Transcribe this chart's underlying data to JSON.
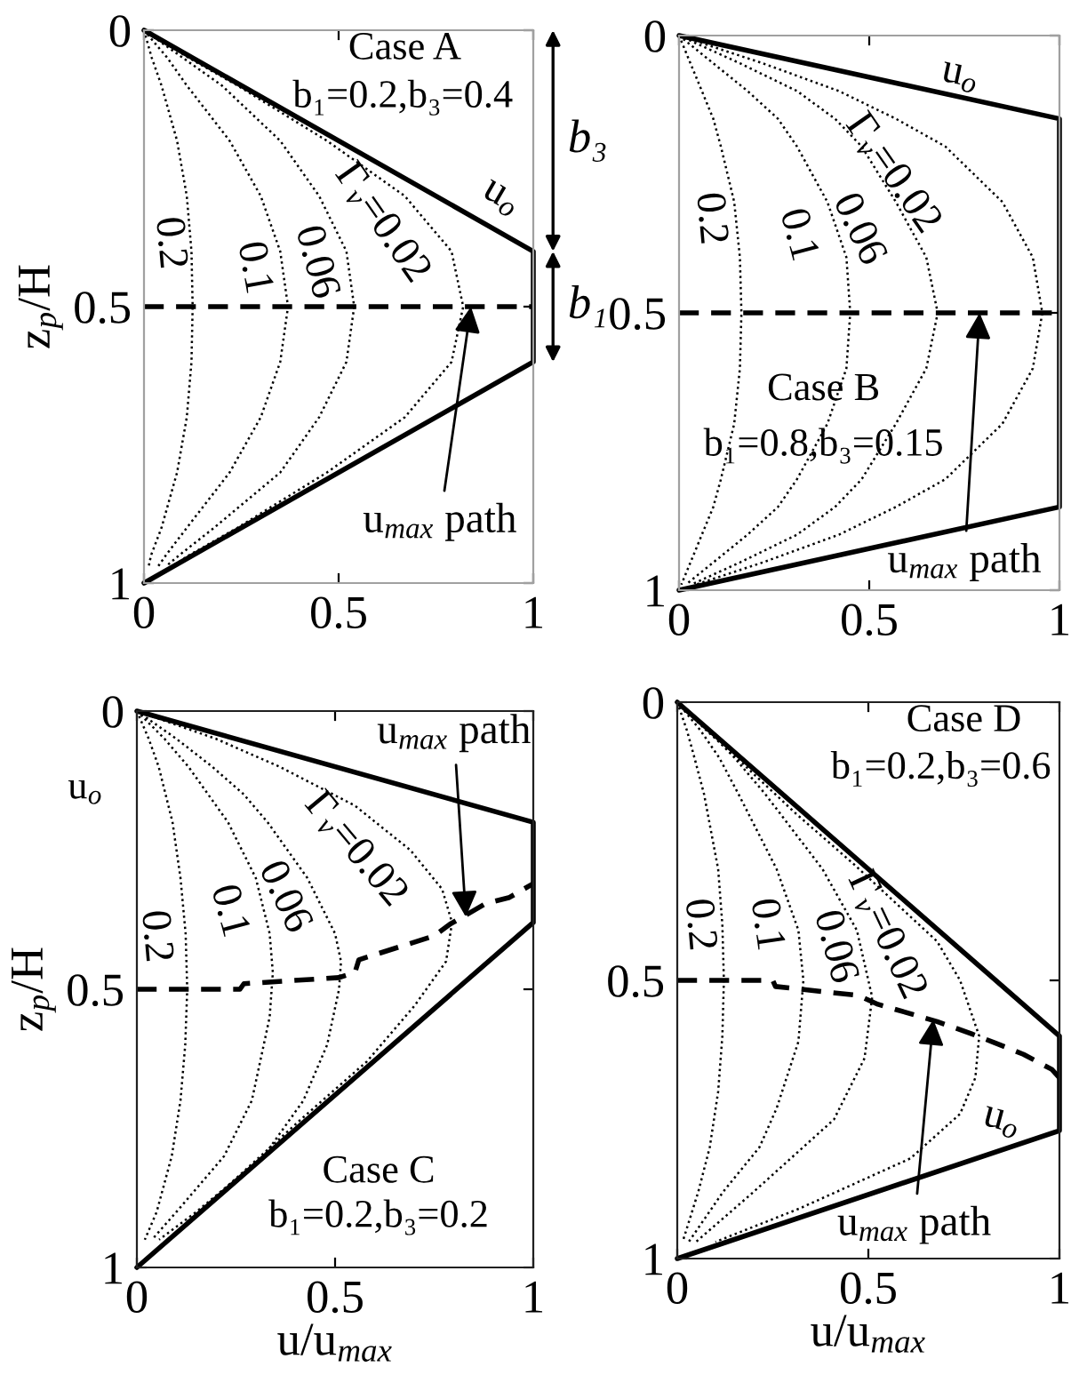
{
  "chart_data": [
    {
      "type": "line",
      "ylabel": "z$_{p}$/H",
      "xlim": [
        0,
        1
      ],
      "ylim": [
        1,
        0
      ],
      "xticks": [
        0,
        0.5,
        1
      ],
      "yticks": [
        0,
        0.5,
        1
      ],
      "series": [
        {
          "name": "u$_{o}$",
          "color": "#000000",
          "line_style": "solid",
          "x": [
            0,
            1,
            1,
            0
          ],
          "values": [
            0,
            0.4,
            0.6,
            1
          ]
        },
        {
          "name": "Γ$_{v}$=0.02",
          "color": "#000000",
          "line_style": "dotted",
          "x": [
            0,
            0.115,
            0.24,
            0.47,
            0.67,
            0.79,
            0.82,
            0.79,
            0.67,
            0.47,
            0.24,
            0.115,
            0.072
          ],
          "values": [
            0,
            0.05,
            0.1,
            0.2,
            0.3,
            0.4,
            0.5,
            0.6,
            0.7,
            0.8,
            0.9,
            0.95,
            0.97
          ]
        },
        {
          "name": "0.06",
          "color": "#000000",
          "line_style": "dotted",
          "x": [
            0,
            0.1,
            0.2,
            0.35,
            0.45,
            0.52,
            0.54,
            0.52,
            0.45,
            0.35,
            0.18,
            0.09,
            0.056
          ],
          "values": [
            0,
            0.05,
            0.1,
            0.2,
            0.3,
            0.4,
            0.5,
            0.6,
            0.7,
            0.8,
            0.9,
            0.95,
            0.97
          ]
        },
        {
          "name": "0.1",
          "color": "#000000",
          "line_style": "dotted",
          "x": [
            0,
            0.06,
            0.11,
            0.22,
            0.3,
            0.35,
            0.37,
            0.35,
            0.3,
            0.22,
            0.11,
            0.056,
            0.036
          ],
          "values": [
            0,
            0.05,
            0.1,
            0.2,
            0.3,
            0.4,
            0.5,
            0.6,
            0.7,
            0.8,
            0.9,
            0.95,
            0.97
          ]
        },
        {
          "name": "0.2",
          "color": "#000000",
          "line_style": "dotted",
          "x": [
            0,
            0.02,
            0.045,
            0.085,
            0.11,
            0.122,
            0.125,
            0.122,
            0.11,
            0.085,
            0.045,
            0.018,
            0.012
          ],
          "values": [
            0,
            0.05,
            0.1,
            0.2,
            0.3,
            0.4,
            0.5,
            0.6,
            0.7,
            0.8,
            0.9,
            0.95,
            0.97
          ]
        },
        {
          "color": "#000000",
          "line_style": "dashed",
          "x": [
            0,
            1
          ],
          "values": [
            0.5,
            0.5
          ]
        }
      ],
      "annotations": [
        "Case A",
        "b₁=0.2,b₃=0.4",
        {
          "text": "b₃",
          "x": 1,
          "y": 0.4
        },
        {
          "text": "b₁",
          "x": 1,
          "y": 0.6
        },
        {
          "text": "u$_{max}$ path",
          "x": 0.84,
          "y": 0.5
        }
      ]
    },
    {
      "type": "line",
      "xlim": [
        0,
        1
      ],
      "ylim": [
        1,
        0
      ],
      "xticks": [
        0,
        0.5,
        1
      ],
      "yticks": [
        0,
        0.5,
        1
      ],
      "series": [
        {
          "name": "u$_{o}$",
          "color": "#000000",
          "line_style": "solid",
          "x": [
            0,
            1,
            1,
            0
          ],
          "values": [
            0,
            0.15,
            0.85,
            1
          ]
        },
        {
          "name": "Γ$_{v}$=0.02",
          "color": "#000000",
          "line_style": "dotted",
          "x": [
            0,
            0.22,
            0.42,
            0.57,
            0.7,
            0.85,
            0.93,
            0.955,
            0.93,
            0.85,
            0.7,
            0.57,
            0.42,
            0.22,
            0.044
          ],
          "values": [
            0,
            0.05,
            0.1,
            0.15,
            0.2,
            0.3,
            0.4,
            0.5,
            0.6,
            0.7,
            0.8,
            0.85,
            0.9,
            0.95,
            0.99
          ]
        },
        {
          "name": "0.06",
          "color": "#000000",
          "line_style": "dotted",
          "x": [
            0,
            0.16,
            0.31,
            0.41,
            0.48,
            0.57,
            0.65,
            0.68,
            0.65,
            0.57,
            0.48,
            0.41,
            0.31,
            0.16,
            0.032
          ],
          "values": [
            0,
            0.05,
            0.1,
            0.15,
            0.2,
            0.3,
            0.4,
            0.5,
            0.6,
            0.7,
            0.8,
            0.85,
            0.9,
            0.95,
            0.99
          ]
        },
        {
          "name": "0.1",
          "color": "#000000",
          "line_style": "dotted",
          "x": [
            0,
            0.09,
            0.18,
            0.26,
            0.31,
            0.39,
            0.44,
            0.45,
            0.44,
            0.39,
            0.31,
            0.26,
            0.18,
            0.09,
            0.018
          ],
          "values": [
            0,
            0.05,
            0.1,
            0.15,
            0.2,
            0.3,
            0.4,
            0.5,
            0.6,
            0.7,
            0.8,
            0.85,
            0.9,
            0.95,
            0.99
          ]
        },
        {
          "name": "0.2",
          "color": "#000000",
          "line_style": "dotted",
          "x": [
            0,
            0.03,
            0.06,
            0.09,
            0.11,
            0.145,
            0.16,
            0.164,
            0.16,
            0.145,
            0.11,
            0.09,
            0.06,
            0.03,
            0.006
          ],
          "values": [
            0,
            0.05,
            0.1,
            0.15,
            0.2,
            0.3,
            0.4,
            0.5,
            0.6,
            0.7,
            0.8,
            0.85,
            0.9,
            0.95,
            0.99
          ]
        },
        {
          "color": "#000000",
          "line_style": "dashed",
          "x": [
            0,
            1
          ],
          "values": [
            0.5,
            0.5
          ]
        }
      ],
      "annotations": [
        "Case B",
        "b₁=0.8,b₃=0.15",
        {
          "text": "u$_{max}$ path",
          "x": 0.79,
          "y": 0.5
        }
      ]
    },
    {
      "type": "line",
      "xlabel": "u/u$_{max}$",
      "ylabel": "z$_{p}$/H",
      "xlim": [
        0,
        1
      ],
      "ylim": [
        1,
        0
      ],
      "xticks": [
        0,
        0.5,
        1
      ],
      "yticks": [
        0,
        0.5,
        1
      ],
      "series": [
        {
          "color": "#000000",
          "line_style": "solid",
          "x": [
            0,
            1,
            1,
            0
          ],
          "values": [
            0,
            0.2,
            0.38,
            1
          ]
        },
        {
          "name": "Γ$_{v}$=0.02",
          "color": "#000000",
          "line_style": "dotted",
          "x": [
            0,
            0.2,
            0.36,
            0.55,
            0.69,
            0.77,
            0.795,
            0.78,
            0.7,
            0.58,
            0.42,
            0.25,
            0.078
          ],
          "values": [
            0,
            0.05,
            0.1,
            0.17,
            0.25,
            0.32,
            0.38,
            0.45,
            0.53,
            0.63,
            0.73,
            0.84,
            0.95
          ]
        },
        {
          "name": "0.06",
          "color": "#000000",
          "line_style": "dotted",
          "x": [
            0,
            0.1,
            0.19,
            0.27,
            0.33,
            0.43,
            0.5,
            0.515,
            0.51,
            0.48,
            0.42,
            0.32,
            0.15,
            0.056
          ],
          "values": [
            0,
            0.05,
            0.1,
            0.15,
            0.2,
            0.3,
            0.4,
            0.45,
            0.5,
            0.6,
            0.7,
            0.8,
            0.9,
            0.95
          ]
        },
        {
          "name": "0.1",
          "color": "#000000",
          "line_style": "dotted",
          "x": [
            0,
            0.07,
            0.13,
            0.23,
            0.3,
            0.335,
            0.343,
            0.335,
            0.32,
            0.29,
            0.22,
            0.1,
            0.038
          ],
          "values": [
            0,
            0.05,
            0.1,
            0.2,
            0.3,
            0.4,
            0.47,
            0.55,
            0.6,
            0.7,
            0.8,
            0.9,
            0.95
          ]
        },
        {
          "name": "0.2",
          "color": "#000000",
          "line_style": "dotted",
          "x": [
            0,
            0.03,
            0.055,
            0.09,
            0.11,
            0.123,
            0.127,
            0.122,
            0.11,
            0.088,
            0.05,
            0.02
          ],
          "values": [
            0,
            0.05,
            0.1,
            0.2,
            0.3,
            0.4,
            0.5,
            0.6,
            0.7,
            0.8,
            0.9,
            0.95
          ]
        },
        {
          "color": "#000000",
          "line_style": "dashed",
          "x": [
            0,
            0.26,
            0.27,
            0.51,
            0.55,
            0.56,
            0.75,
            0.79,
            0.88,
            0.94,
            1
          ],
          "values": [
            0.5,
            0.5,
            0.49,
            0.479,
            0.47,
            0.447,
            0.404,
            0.383,
            0.346,
            0.335,
            0.31
          ]
        }
      ],
      "annotations": [
        "u$_{o}$",
        "Case C",
        "b₁=0.2,b₃=0.2",
        {
          "text": "u$_{max}$ path",
          "x": 0.83,
          "y": 0.37
        }
      ]
    },
    {
      "type": "line",
      "xlabel": "u/u$_{max}$",
      "xlim": [
        0,
        1
      ],
      "ylim": [
        1,
        0
      ],
      "xticks": [
        0,
        0.5,
        1
      ],
      "yticks": [
        0,
        0.5,
        1
      ],
      "series": [
        {
          "name": "u$_{o}$",
          "color": "#000000",
          "line_style": "solid",
          "x": [
            0,
            1,
            1,
            0
          ],
          "values": [
            0,
            0.6,
            0.77,
            1
          ]
        },
        {
          "name": "Γ$_{v}$=0.02",
          "color": "#000000",
          "line_style": "dotted",
          "x": [
            0,
            0.075,
            0.155,
            0.31,
            0.46,
            0.68,
            0.74,
            0.79,
            0.78,
            0.74,
            0.61,
            0.32,
            0.1
          ],
          "values": [
            0,
            0.05,
            0.1,
            0.2,
            0.29,
            0.43,
            0.5,
            0.6,
            0.675,
            0.74,
            0.82,
            0.91,
            0.97
          ]
        },
        {
          "name": "0.06",
          "color": "#000000",
          "line_style": "dotted",
          "x": [
            0,
            0.08,
            0.15,
            0.23,
            0.38,
            0.47,
            0.51,
            0.49,
            0.41,
            0.2,
            0.049
          ],
          "values": [
            0,
            0.05,
            0.1,
            0.165,
            0.3,
            0.41,
            0.53,
            0.64,
            0.75,
            0.88,
            0.97
          ]
        },
        {
          "name": "0.1",
          "color": "#000000",
          "line_style": "dotted",
          "x": [
            0,
            0.06,
            0.11,
            0.16,
            0.26,
            0.317,
            0.33,
            0.317,
            0.26,
            0.215,
            0.12,
            0.03
          ],
          "values": [
            0,
            0.05,
            0.1,
            0.165,
            0.3,
            0.41,
            0.5,
            0.61,
            0.73,
            0.8,
            0.88,
            0.97
          ]
        },
        {
          "name": "0.2",
          "color": "#000000",
          "line_style": "dotted",
          "x": [
            0,
            0.025,
            0.045,
            0.07,
            0.107,
            0.118,
            0.122,
            0.118,
            0.107,
            0.085,
            0.055,
            0.014
          ],
          "values": [
            0,
            0.05,
            0.1,
            0.165,
            0.3,
            0.4,
            0.5,
            0.6,
            0.7,
            0.8,
            0.88,
            0.97
          ]
        },
        {
          "color": "#000000",
          "line_style": "dashed",
          "x": [
            0,
            0.25,
            0.257,
            0.473,
            0.525,
            0.68,
            0.77,
            0.83,
            0.906,
            0.98,
            1
          ],
          "values": [
            0.5,
            0.5,
            0.511,
            0.527,
            0.543,
            0.574,
            0.596,
            0.612,
            0.633,
            0.66,
            0.675
          ]
        }
      ],
      "annotations": [
        "Case D",
        "b₁=0.2,b₃=0.6",
        {
          "text": "u$_{max}$ path",
          "x": 0.67,
          "y": 0.57
        }
      ]
    }
  ]
}
